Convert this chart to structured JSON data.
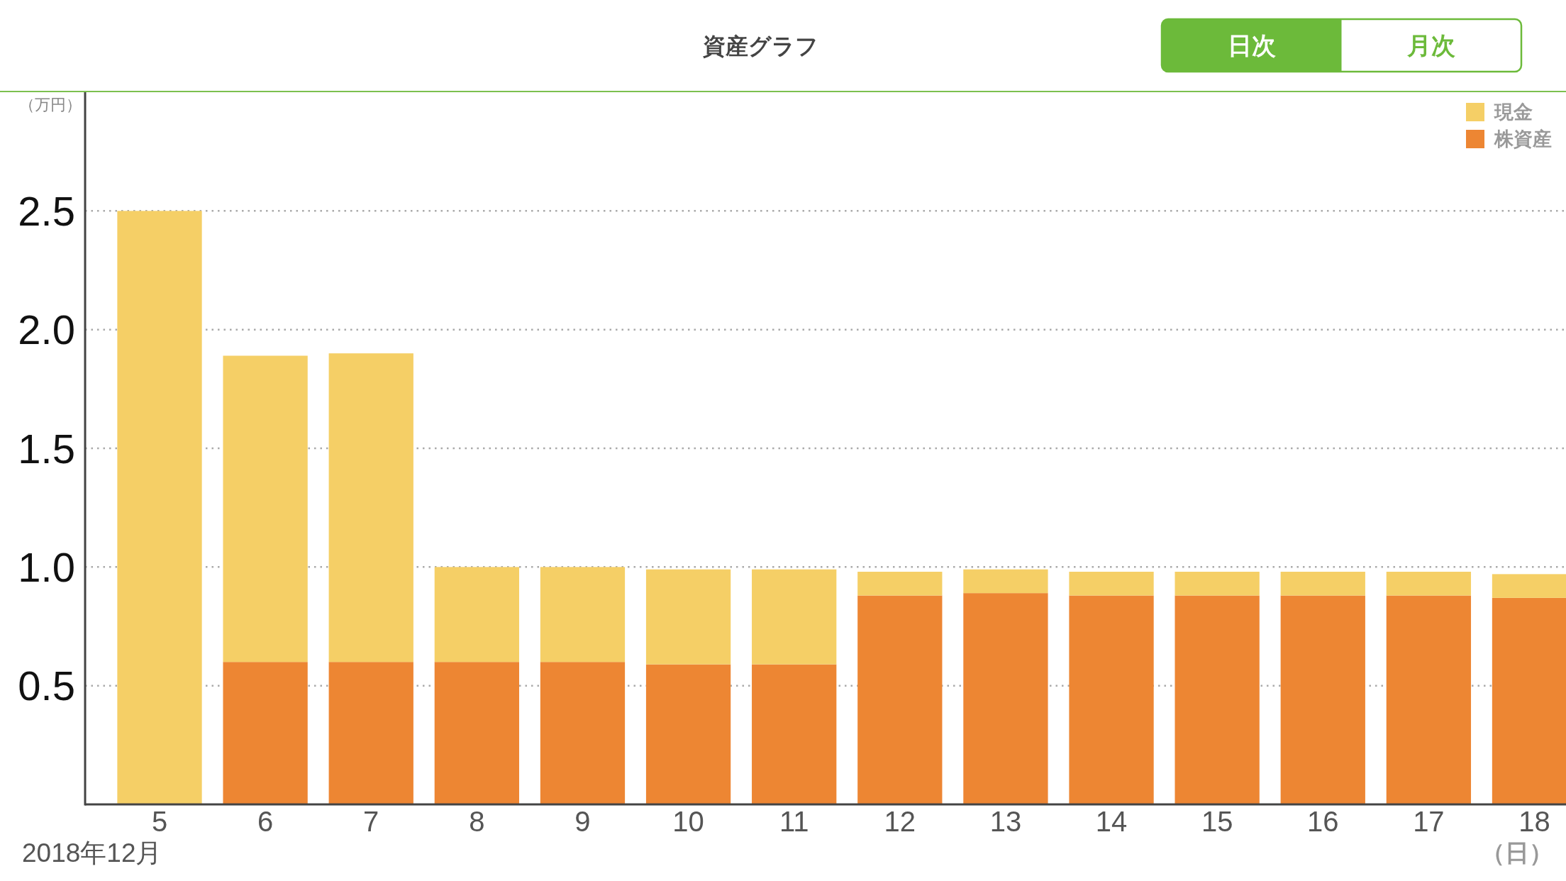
{
  "chart_data": {
    "type": "bar",
    "title": "資産グラフ",
    "xlabel": "（日）",
    "ylabel": "（万円）",
    "annotations": [
      "2018年12月",
      "日次",
      "月次"
    ],
    "categories": [
      "5",
      "6",
      "7",
      "8",
      "9",
      "10",
      "11",
      "12",
      "13",
      "14",
      "15",
      "16",
      "17",
      "18"
    ],
    "stacked": true,
    "series": [
      {
        "name": "株資産",
        "color": "#ed8633",
        "values": [
          0,
          0.6,
          0.6,
          0.6,
          0.6,
          0.59,
          0.59,
          0.88,
          0.89,
          0.88,
          0.88,
          0.88,
          0.88,
          0.87
        ]
      },
      {
        "name": "現金",
        "color": "#f5cf66",
        "values": [
          2.5,
          1.29,
          1.3,
          0.4,
          0.4,
          0.4,
          0.4,
          0.1,
          0.1,
          0.1,
          0.1,
          0.1,
          0.1,
          0.1
        ]
      }
    ],
    "ylim": [
      0,
      3
    ],
    "yticks": [
      0.5,
      {
        "value": 1,
        "label": "1.0"
      },
      1.5,
      {
        "value": 2,
        "label": "2.0"
      },
      2.5
    ],
    "grid": "y",
    "legend": "top right"
  }
}
